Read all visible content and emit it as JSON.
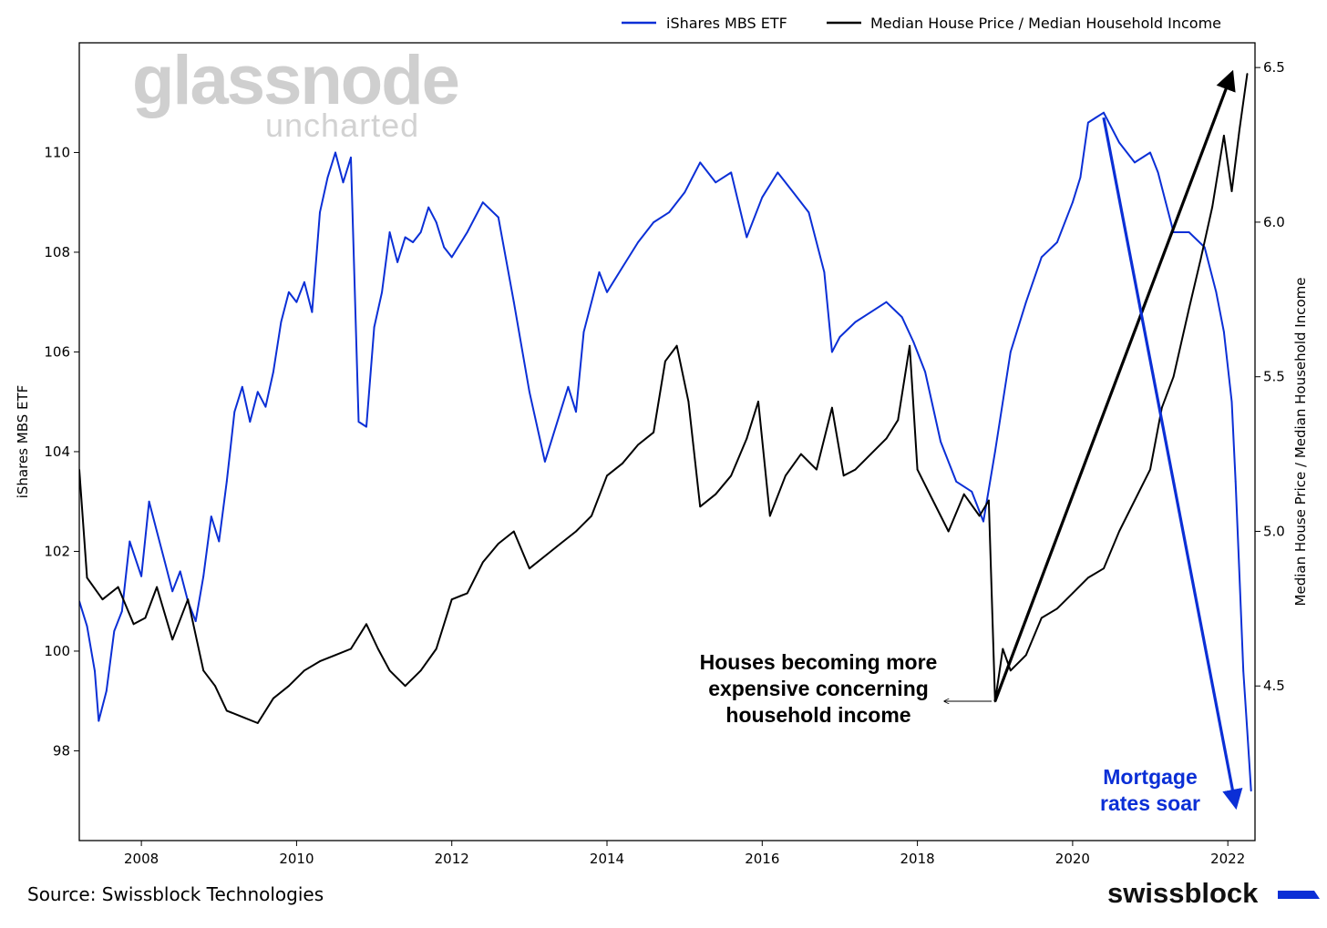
{
  "chart_data": {
    "type": "line",
    "watermark": {
      "main": "glassnode",
      "sub": "uncharted"
    },
    "legend": {
      "placement": "top-right"
    },
    "x": {
      "min": 2007.2,
      "max": 2022.35,
      "ticks": [
        2008,
        2010,
        2012,
        2014,
        2016,
        2018,
        2020,
        2022
      ],
      "tick_labels": [
        "2008",
        "2010",
        "2012",
        "2014",
        "2016",
        "2018",
        "2020",
        "2022"
      ]
    },
    "y_left": {
      "label": "iShares MBS ETF",
      "min": 96.2,
      "max": 112.2,
      "ticks": [
        98,
        100,
        102,
        104,
        106,
        108,
        110
      ],
      "tick_labels": [
        "98",
        "100",
        "102",
        "104",
        "106",
        "108",
        "110"
      ]
    },
    "y_right": {
      "label": "Median House Price / Median Household Income",
      "min": 4.0,
      "max": 6.58,
      "ticks": [
        4.5,
        5.0,
        5.5,
        6.0,
        6.5
      ],
      "tick_labels": [
        "4.5",
        "5.0",
        "5.5",
        "6.0",
        "6.5"
      ]
    },
    "series": [
      {
        "name": "iShares MBS ETF",
        "axis": "left",
        "color": "#0b2fd6",
        "x": [
          2007.2,
          2007.3,
          2007.4,
          2007.45,
          2007.55,
          2007.65,
          2007.75,
          2007.85,
          2008.0,
          2008.1,
          2008.2,
          2008.3,
          2008.4,
          2008.5,
          2008.6,
          2008.7,
          2008.8,
          2008.9,
          2009.0,
          2009.1,
          2009.2,
          2009.3,
          2009.4,
          2009.5,
          2009.6,
          2009.7,
          2009.8,
          2009.9,
          2010.0,
          2010.1,
          2010.2,
          2010.3,
          2010.4,
          2010.5,
          2010.6,
          2010.7,
          2010.8,
          2010.9,
          2011.0,
          2011.1,
          2011.2,
          2011.3,
          2011.4,
          2011.5,
          2011.6,
          2011.7,
          2011.8,
          2011.9,
          2012.0,
          2012.2,
          2012.4,
          2012.6,
          2012.8,
          2013.0,
          2013.2,
          2013.4,
          2013.5,
          2013.6,
          2013.7,
          2013.8,
          2013.9,
          2014.0,
          2014.2,
          2014.4,
          2014.6,
          2014.8,
          2015.0,
          2015.2,
          2015.4,
          2015.6,
          2015.8,
          2016.0,
          2016.2,
          2016.4,
          2016.6,
          2016.8,
          2016.9,
          2017.0,
          2017.2,
          2017.4,
          2017.6,
          2017.8,
          2017.95,
          2018.1,
          2018.3,
          2018.5,
          2018.7,
          2018.85,
          2019.0,
          2019.2,
          2019.4,
          2019.6,
          2019.8,
          2020.0,
          2020.1,
          2020.2,
          2020.3,
          2020.4,
          2020.6,
          2020.8,
          2021.0,
          2021.1,
          2021.2,
          2021.3,
          2021.5,
          2021.7,
          2021.85,
          2021.95,
          2022.05,
          2022.1,
          2022.15,
          2022.2,
          2022.25,
          2022.3
        ],
        "values": [
          101.0,
          100.5,
          99.6,
          98.6,
          99.2,
          100.4,
          100.8,
          102.2,
          101.5,
          103.0,
          102.4,
          101.8,
          101.2,
          101.6,
          101.0,
          100.6,
          101.5,
          102.7,
          102.2,
          103.4,
          104.8,
          105.3,
          104.6,
          105.2,
          104.9,
          105.6,
          106.6,
          107.2,
          107.0,
          107.4,
          106.8,
          108.8,
          109.5,
          110.0,
          109.4,
          109.9,
          104.6,
          104.5,
          106.5,
          107.2,
          108.4,
          107.8,
          108.3,
          108.2,
          108.4,
          108.9,
          108.6,
          108.1,
          107.9,
          108.4,
          109.0,
          108.7,
          107.0,
          105.2,
          103.8,
          104.8,
          105.3,
          104.8,
          106.4,
          107.0,
          107.6,
          107.2,
          107.7,
          108.2,
          108.6,
          108.8,
          109.2,
          109.8,
          109.4,
          109.6,
          108.3,
          109.1,
          109.6,
          109.2,
          108.8,
          107.6,
          106.0,
          106.3,
          106.6,
          106.8,
          107.0,
          106.7,
          106.2,
          105.6,
          104.2,
          103.4,
          103.2,
          102.6,
          104.0,
          106.0,
          107.0,
          107.9,
          108.2,
          109.0,
          109.5,
          110.6,
          110.7,
          110.8,
          110.2,
          109.8,
          110.0,
          109.6,
          109.0,
          108.4,
          108.4,
          108.1,
          107.2,
          106.4,
          105.0,
          103.4,
          101.5,
          99.6,
          98.4,
          97.2
        ]
      },
      {
        "name": "Median House Price / Median Household Income",
        "axis": "right",
        "color": "#000000",
        "x": [
          2007.2,
          2007.3,
          2007.5,
          2007.7,
          2007.9,
          2008.05,
          2008.2,
          2008.4,
          2008.6,
          2008.8,
          2008.95,
          2009.1,
          2009.3,
          2009.5,
          2009.7,
          2009.9,
          2010.1,
          2010.3,
          2010.5,
          2010.7,
          2010.9,
          2011.05,
          2011.2,
          2011.4,
          2011.6,
          2011.8,
          2012.0,
          2012.2,
          2012.4,
          2012.6,
          2012.8,
          2013.0,
          2013.2,
          2013.4,
          2013.6,
          2013.8,
          2014.0,
          2014.2,
          2014.4,
          2014.6,
          2014.75,
          2014.9,
          2015.05,
          2015.2,
          2015.4,
          2015.6,
          2015.8,
          2015.95,
          2016.1,
          2016.3,
          2016.5,
          2016.7,
          2016.9,
          2017.05,
          2017.2,
          2017.4,
          2017.6,
          2017.75,
          2017.9,
          2018.0,
          2018.2,
          2018.4,
          2018.6,
          2018.8,
          2018.92,
          2019.0,
          2019.1,
          2019.2,
          2019.4,
          2019.6,
          2019.8,
          2020.0,
          2020.2,
          2020.4,
          2020.6,
          2020.8,
          2021.0,
          2021.15,
          2021.3,
          2021.5,
          2021.65,
          2021.8,
          2021.95,
          2022.05,
          2022.15,
          2022.25
        ],
        "values": [
          5.2,
          4.85,
          4.78,
          4.82,
          4.7,
          4.72,
          4.82,
          4.65,
          4.78,
          4.55,
          4.5,
          4.42,
          4.4,
          4.38,
          4.46,
          4.5,
          4.55,
          4.58,
          4.6,
          4.62,
          4.7,
          4.62,
          4.55,
          4.5,
          4.55,
          4.62,
          4.78,
          4.8,
          4.9,
          4.96,
          5.0,
          4.88,
          4.92,
          4.96,
          5.0,
          5.05,
          5.18,
          5.22,
          5.28,
          5.32,
          5.55,
          5.6,
          5.42,
          5.08,
          5.12,
          5.18,
          5.3,
          5.42,
          5.05,
          5.18,
          5.25,
          5.2,
          5.4,
          5.18,
          5.2,
          5.25,
          5.3,
          5.36,
          5.6,
          5.2,
          5.1,
          5.0,
          5.12,
          5.05,
          5.1,
          4.45,
          4.62,
          4.55,
          4.6,
          4.72,
          4.75,
          4.8,
          4.85,
          4.88,
          5.0,
          5.1,
          5.2,
          5.4,
          5.5,
          5.72,
          5.88,
          6.05,
          6.28,
          6.1,
          6.3,
          6.48
        ]
      }
    ],
    "annotations": [
      {
        "id": "houses",
        "lines": [
          "Houses becoming more",
          "expensive concerning",
          "household income"
        ],
        "color": "#000000"
      },
      {
        "id": "mortgage",
        "lines": [
          "Mortgage",
          "rates soar"
        ],
        "color": "#0b2fd6"
      }
    ],
    "arrows": [
      {
        "color": "#000000",
        "axis": "right",
        "from": [
          2019.0,
          4.45
        ],
        "to": [
          2022.05,
          6.48
        ]
      },
      {
        "color": "#0b2fd6",
        "axis": "left",
        "from": [
          2020.4,
          110.7
        ],
        "to": [
          2022.1,
          96.9
        ]
      }
    ]
  },
  "footer": {
    "source": "Source: Swissblock Technologies",
    "brand": "swissblock",
    "brand_accent_color": "#0b2fd6"
  }
}
